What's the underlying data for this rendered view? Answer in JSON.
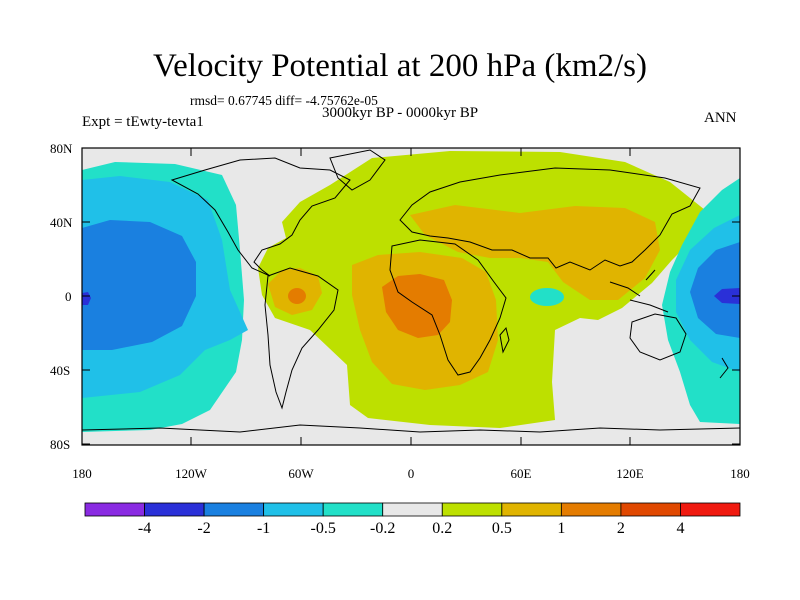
{
  "title": "Velocity Potential at 200 hPa (km2/s)",
  "stats": "rmsd= 0.67745 diff= -4.75762e-05",
  "period": "3000kyr BP - 0000kyr BP",
  "experiment": "Expt = tEwty-tevta1",
  "season": "ANN",
  "y_ticks": [
    "80N",
    "40N",
    "0",
    "40S",
    "80S"
  ],
  "x_ticks": [
    "180",
    "120W",
    "60W",
    "0",
    "60E",
    "120E",
    "180"
  ],
  "colorbar": {
    "colors": [
      "#8a2be2",
      "#2a30d8",
      "#1a80e0",
      "#20c0e8",
      "#22e0c8",
      "#e8e8e8",
      "#bde000",
      "#e0b400",
      "#e47c00",
      "#e04800",
      "#f01a10"
    ],
    "labels": [
      "-4",
      "-2",
      "-1",
      "-0.5",
      "-0.2",
      "0.2",
      "0.5",
      "1",
      "2",
      "4"
    ]
  },
  "chart_data": {
    "type": "heatmap",
    "title": "Velocity Potential at 200 hPa (km2/s)",
    "variable": "velocity potential difference",
    "units": "km2/s",
    "level": "200 hPa",
    "x_range": [
      -180,
      180
    ],
    "y_range": [
      -90,
      90
    ],
    "contour_levels": [
      -4,
      -2,
      -1,
      -0.5,
      -0.2,
      0.2,
      0.5,
      1,
      2,
      4
    ],
    "regions": [
      {
        "name": "tropical Atlantic / Africa maximum",
        "lon": -5,
        "lat": -5,
        "value_range": "1 to 2"
      },
      {
        "name": "South American maximum",
        "lon": -62,
        "lat": 0,
        "value_range": "1 to 2"
      },
      {
        "name": "Asian / Indian Ocean high",
        "lon": 90,
        "lat": 25,
        "value_range": "0.5 to 1"
      },
      {
        "name": "central Pacific minimum",
        "lon": -160,
        "lat": 0,
        "value_range": "-2 to -1"
      },
      {
        "name": "western Pacific minimum",
        "lon": 165,
        "lat": 0,
        "value_range": "-2 to -1"
      },
      {
        "name": "south Indian Ocean cell",
        "lon": 68,
        "lat": -5,
        "value_range": "-0.5 to -0.2"
      }
    ]
  }
}
